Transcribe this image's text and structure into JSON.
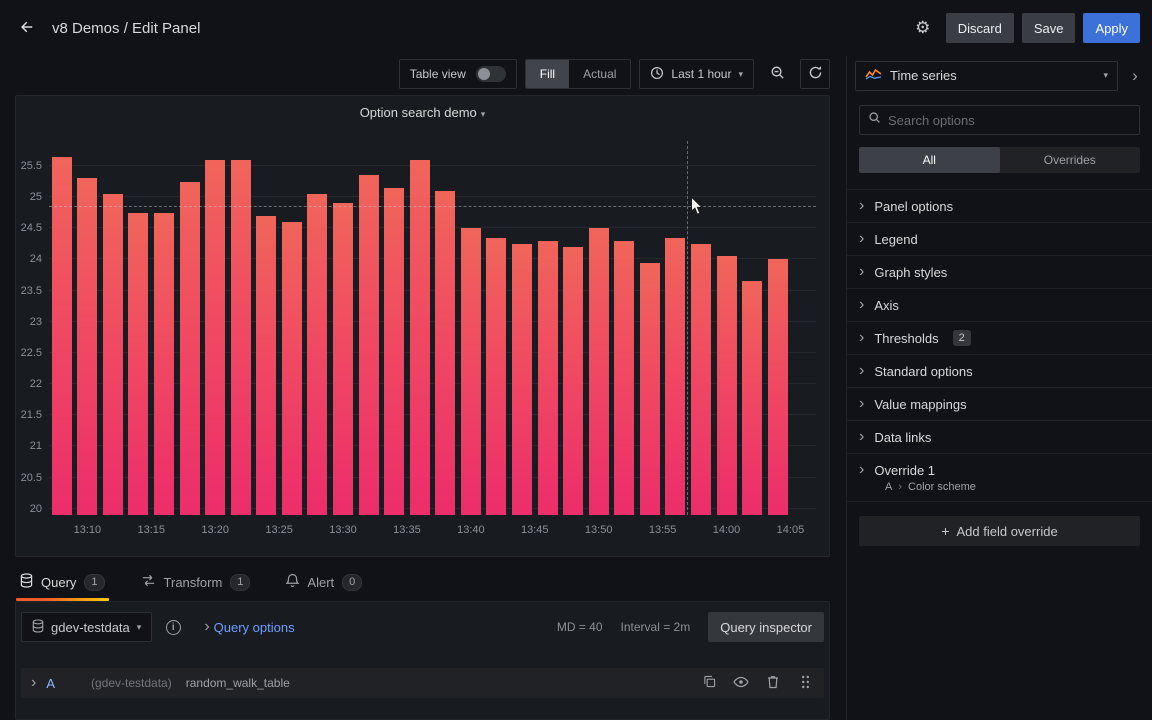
{
  "colors": {
    "bg": "#111217",
    "panel": "#181b1f",
    "accent_blue": "#3c71d9",
    "link_blue": "#6e9fff",
    "bar_gradient_top": "#f0655a",
    "bar_gradient_bottom": "#ec2d6b",
    "active_tab_underline": "#f05a28"
  },
  "header": {
    "title": "v8 Demos / Edit Panel",
    "discard_label": "Discard",
    "save_label": "Save",
    "apply_label": "Apply"
  },
  "toolbar": {
    "table_view_label": "Table view",
    "fill_label": "Fill",
    "actual_label": "Actual",
    "time_range_label": "Last 1 hour"
  },
  "chart_data": {
    "type": "bar",
    "title": "Option search demo",
    "x_range": [
      "13:07",
      "14:07"
    ],
    "x": [
      "13:08",
      "13:10",
      "13:12",
      "13:14",
      "13:16",
      "13:18",
      "13:20",
      "13:22",
      "13:24",
      "13:26",
      "13:28",
      "13:30",
      "13:32",
      "13:34",
      "13:36",
      "13:38",
      "13:40",
      "13:42",
      "13:44",
      "13:46",
      "13:48",
      "13:50",
      "13:52",
      "13:54",
      "13:56",
      "13:58",
      "14:00",
      "14:02",
      "14:04"
    ],
    "values": [
      25.65,
      25.3,
      25.05,
      24.75,
      24.75,
      25.25,
      25.6,
      25.6,
      24.7,
      24.6,
      25.05,
      24.9,
      25.35,
      25.15,
      25.6,
      25.1,
      24.5,
      24.35,
      24.25,
      24.3,
      24.2,
      24.5,
      24.3,
      23.95,
      24.35,
      24.25,
      24.05,
      23.65,
      24.0
    ],
    "ylim": [
      19.9,
      25.9
    ],
    "y_ticks": [
      20,
      20.5,
      21,
      21.5,
      22,
      22.5,
      23,
      23.5,
      24,
      24.5,
      25,
      25.5
    ],
    "x_tick_labels": [
      "13:10",
      "13:15",
      "13:20",
      "13:25",
      "13:30",
      "13:35",
      "13:40",
      "13:45",
      "13:50",
      "13:55",
      "14:00",
      "14:05"
    ],
    "grid": true,
    "legend": false,
    "crosshair": {
      "x_fraction": 0.832,
      "y_value": 24.85
    }
  },
  "tabs": [
    {
      "label": "Query",
      "count": "1"
    },
    {
      "label": "Transform",
      "count": "1"
    },
    {
      "label": "Alert",
      "count": "0"
    }
  ],
  "query_editor": {
    "datasource": "gdev-testdata",
    "query_options_label": "Query options",
    "max_data_points": "MD = 40",
    "interval": "Interval = 2m",
    "inspector_label": "Query inspector",
    "row": {
      "ref": "A",
      "scenario": "(gdev-testdata)",
      "query_name": "random_walk_table"
    }
  },
  "sidebar": {
    "viz_name": "Time series",
    "search_placeholder": "Search options",
    "filter_all": "All",
    "filter_overrides": "Overrides",
    "sections": [
      {
        "label": "Panel options"
      },
      {
        "label": "Legend"
      },
      {
        "label": "Graph styles"
      },
      {
        "label": "Axis"
      },
      {
        "label": "Thresholds",
        "badge": "2"
      },
      {
        "label": "Standard options"
      },
      {
        "label": "Value mappings"
      },
      {
        "label": "Data links"
      },
      {
        "label": "Override 1",
        "sub_ref": "A",
        "sub_label": "Color scheme"
      }
    ],
    "add_override_label": "Add field override"
  }
}
